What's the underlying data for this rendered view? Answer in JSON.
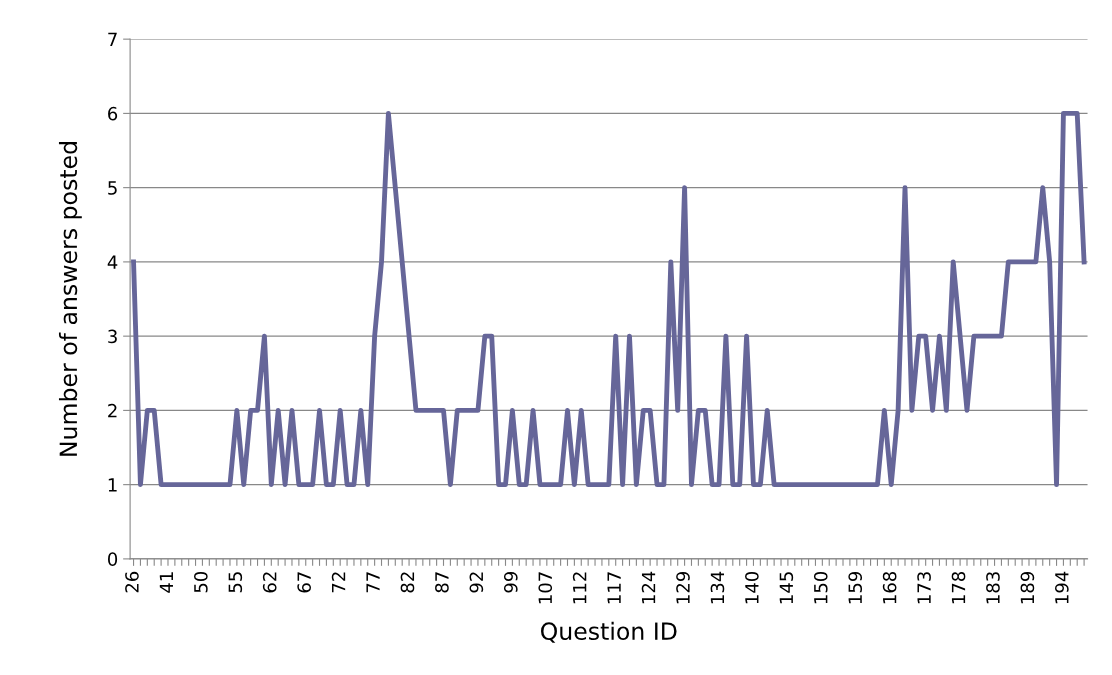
{
  "chart_data": {
    "type": "line",
    "xlabel": "Question ID",
    "ylabel": "Number of answers posted",
    "categories": [
      "26",
      null,
      null,
      null,
      null,
      "41",
      null,
      null,
      null,
      null,
      "50",
      null,
      null,
      null,
      null,
      "55",
      null,
      null,
      null,
      null,
      "62",
      null,
      null,
      null,
      null,
      "67",
      null,
      null,
      null,
      null,
      "72",
      null,
      null,
      null,
      null,
      "77",
      null,
      null,
      null,
      null,
      "82",
      null,
      null,
      null,
      null,
      "87",
      null,
      null,
      null,
      null,
      "92",
      null,
      null,
      null,
      null,
      "99",
      null,
      null,
      null,
      null,
      "107",
      null,
      null,
      null,
      null,
      "112",
      null,
      null,
      null,
      null,
      "117",
      null,
      null,
      null,
      null,
      "124",
      null,
      null,
      null,
      null,
      "129",
      null,
      null,
      null,
      null,
      "134",
      null,
      null,
      null,
      null,
      "140",
      null,
      null,
      null,
      null,
      "145",
      null,
      null,
      null,
      null,
      "150",
      null,
      null,
      null,
      null,
      "159",
      null,
      null,
      null,
      null,
      "168",
      null,
      null,
      null,
      null,
      "173",
      null,
      null,
      null,
      null,
      "178",
      null,
      null,
      null,
      null,
      "183",
      null,
      null,
      null,
      null,
      "189",
      null,
      null,
      null,
      null,
      "194",
      null,
      null,
      null
    ],
    "series": [
      {
        "color": "#666699",
        "values": [
          4,
          1,
          2,
          2,
          1,
          1,
          1,
          1,
          1,
          1,
          1,
          1,
          1,
          1,
          1,
          2,
          1,
          2,
          2,
          3,
          1,
          2,
          1,
          2,
          1,
          1,
          1,
          2,
          1,
          1,
          2,
          1,
          1,
          2,
          1,
          3,
          4,
          6,
          5,
          4,
          3,
          2,
          2,
          2,
          2,
          2,
          1,
          2,
          2,
          2,
          2,
          3,
          3,
          1,
          1,
          2,
          1,
          1,
          2,
          1,
          1,
          1,
          1,
          2,
          1,
          2,
          1,
          1,
          1,
          1,
          3,
          1,
          3,
          1,
          2,
          2,
          1,
          1,
          4,
          2,
          5,
          1,
          2,
          2,
          1,
          1,
          3,
          1,
          1,
          3,
          1,
          1,
          2,
          1,
          1,
          1,
          1,
          1,
          1,
          1,
          1,
          1,
          1,
          1,
          1,
          1,
          1,
          1,
          1,
          2,
          1,
          2,
          5,
          2,
          3,
          3,
          2,
          3,
          2,
          4,
          3,
          2,
          3,
          3,
          3,
          3,
          3,
          4,
          4,
          4,
          4,
          4,
          5,
          4,
          1,
          6,
          6,
          6,
          4
        ]
      }
    ],
    "ylim": [
      0,
      7
    ],
    "yticks": [
      0,
      1,
      2,
      3,
      4,
      5,
      6,
      7
    ],
    "grid": "y",
    "legend": false,
    "marker": "none",
    "line_style": "solid"
  }
}
